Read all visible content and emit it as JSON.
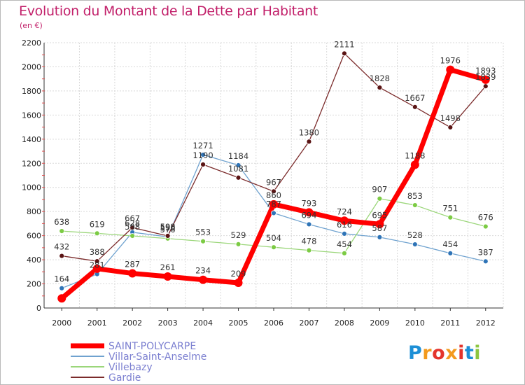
{
  "title": "Evolution du Montant de la Dette par Habitant",
  "subtitle": "(en €)",
  "logo": {
    "text": "Proxiti",
    "colors": [
      "#1d8fd6",
      "#f39a1e",
      "#e4342c",
      "#8cc63f"
    ]
  },
  "chart_data": {
    "type": "line",
    "title": "Evolution du Montant de la Dette par Habitant",
    "subtitle": "(en €)",
    "xlabel": "",
    "ylabel": "",
    "ylim": [
      0,
      2200
    ],
    "yticks": [
      0,
      200,
      400,
      600,
      800,
      1000,
      1200,
      1400,
      1600,
      1800,
      2000,
      2200
    ],
    "grid": true,
    "legend_position": "bottom-left",
    "x": [
      "2000",
      "2001",
      "2002",
      "2003",
      "2004",
      "2005",
      "2006",
      "2007",
      "2008",
      "2009",
      "2010",
      "2011",
      "2012"
    ],
    "series": [
      {
        "name": "SAINT-POLYCARPE",
        "color": "#ff0000",
        "marker": "#ff0000",
        "values": [
          80,
          326,
          287,
          261,
          234,
          209,
          860,
          793,
          724,
          695,
          1188,
          1976,
          1893
        ],
        "labels": [
          "",
          "",
          "287",
          "261",
          "234",
          "209",
          "860",
          "793",
          "724",
          "695",
          "1188",
          "1976",
          "1893"
        ]
      },
      {
        "name": "Villar-Saint-Anselme",
        "color": "#6fa2cf",
        "marker": "#2f74b7",
        "values": [
          164,
          281,
          628,
          590,
          1271,
          1184,
          787,
          694,
          616,
          587,
          528,
          454,
          387
        ],
        "labels": [
          "164",
          "281",
          "628",
          "590",
          "1271",
          "1184",
          "787",
          "694",
          "616",
          "587",
          "528",
          "454",
          "387"
        ]
      },
      {
        "name": "Villebazy",
        "color": "#9bd67a",
        "marker": "#7ccb44",
        "values": [
          638,
          619,
          598,
          576,
          553,
          529,
          504,
          478,
          454,
          907,
          853,
          751,
          676
        ],
        "labels": [
          "638",
          "619",
          "598",
          "576",
          "553",
          "529",
          "504",
          "478",
          "454",
          "907",
          "853",
          "751",
          "676"
        ]
      },
      {
        "name": "Gardie",
        "color": "#7b2b2b",
        "marker": "#5a1414",
        "values": [
          432,
          388,
          667,
          598,
          1190,
          1081,
          967,
          1380,
          2111,
          1828,
          1667,
          1498,
          1839
        ],
        "labels": [
          "432",
          "388",
          "667",
          "598",
          "1190",
          "1081",
          "967",
          "1380",
          "2111",
          "1828",
          "1667",
          "1498",
          "1839"
        ]
      }
    ]
  }
}
